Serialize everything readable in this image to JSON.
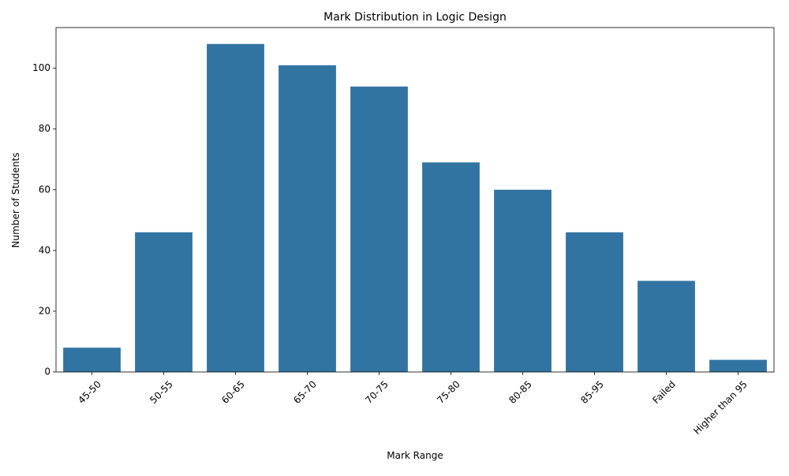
{
  "chart_data": {
    "type": "bar",
    "title": "Mark Distribution in Logic Design",
    "xlabel": "Mark Range",
    "ylabel": "Number of Students",
    "categories": [
      "45-50",
      "50-55",
      "60-65",
      "65-70",
      "70-75",
      "75-80",
      "80-85",
      "85-95",
      "Failed",
      "Higher than 95"
    ],
    "values": [
      8,
      46,
      108,
      101,
      94,
      69,
      60,
      46,
      30,
      4
    ],
    "ylim": [
      0,
      113.4
    ],
    "yticks": [
      0,
      20,
      40,
      60,
      80,
      100
    ],
    "bar_color": "#3274a1",
    "grid": false,
    "legend": "none",
    "x_tick_rotation_deg": 45
  }
}
